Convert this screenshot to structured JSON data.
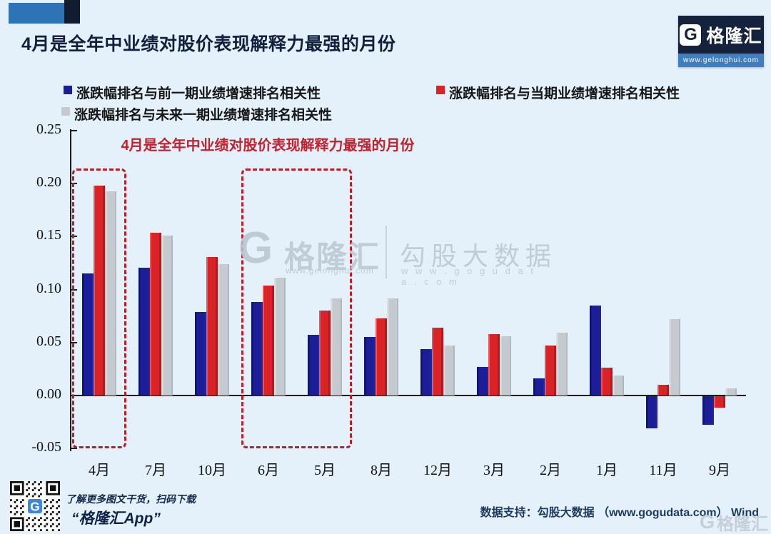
{
  "header": {
    "title": "4月是全年中业绩对股价表现解释力最强的月份",
    "logo": {
      "g": "G",
      "brand": "格隆汇",
      "url": "www.gelonghui.com"
    }
  },
  "legend": {
    "items": [
      {
        "label": "涨跌幅排名与前一期业绩增速排名相关性",
        "color": "#1b1e96"
      },
      {
        "label": "涨跌幅排名与未来一期业绩增速排名相关性",
        "color": "#c4cacf"
      },
      {
        "label": "涨跌幅排名与当期业绩增速排名相关性",
        "color": "#d92327"
      }
    ]
  },
  "chart_data": {
    "type": "bar",
    "title": "4月是全年中业绩对股价表现解释力最强的月份",
    "xlabel": "",
    "ylabel": "",
    "categories": [
      "4月",
      "7月",
      "10月",
      "6月",
      "5月",
      "8月",
      "12月",
      "3月",
      "2月",
      "1月",
      "11月",
      "9月"
    ],
    "series": [
      {
        "name": "涨跌幅排名与前一期业绩增速排名相关性",
        "color": "#1b1e96",
        "values": [
          0.115,
          0.121,
          0.079,
          0.088,
          0.057,
          0.055,
          0.044,
          0.027,
          0.016,
          0.085,
          -0.03,
          -0.027
        ]
      },
      {
        "name": "涨跌幅排名与当期业绩增速排名相关性",
        "color": "#d92327",
        "values": [
          0.198,
          0.154,
          0.131,
          0.104,
          0.08,
          0.073,
          0.064,
          0.058,
          0.047,
          0.026,
          0.01,
          -0.011
        ]
      },
      {
        "name": "涨跌幅排名与未来一期业绩增速排名相关性",
        "color": "#c4cacf",
        "values": [
          0.193,
          0.151,
          0.124,
          0.111,
          0.092,
          0.092,
          0.047,
          0.056,
          0.059,
          0.019,
          0.072,
          0.007
        ]
      }
    ],
    "ylim": [
      -0.05,
      0.25
    ],
    "yticks": [
      0.25,
      0.2,
      0.15,
      0.1,
      0.05,
      0.0,
      -0.05
    ],
    "grid": false,
    "legend_position": "top",
    "highlighted_categories": [
      [
        "4月"
      ],
      [
        "6月",
        "5月"
      ]
    ]
  },
  "watermark": {
    "g": "G",
    "brand": "格隆汇",
    "brand_url": "www.gelonghui.com",
    "partner": "勾股大数据",
    "partner_url": "w w w . g o g u d a t a . c o m"
  },
  "footer": {
    "qr_caption_line1": "了解更多图文干货，扫码下载",
    "qr_caption_line2": "“格隆汇App”",
    "qr_center": "G",
    "data_support": "数据支持：勾股大数据 （www.gogudata.com）  Wind",
    "corner_g": "G",
    "corner_watermark": "格隆汇"
  }
}
